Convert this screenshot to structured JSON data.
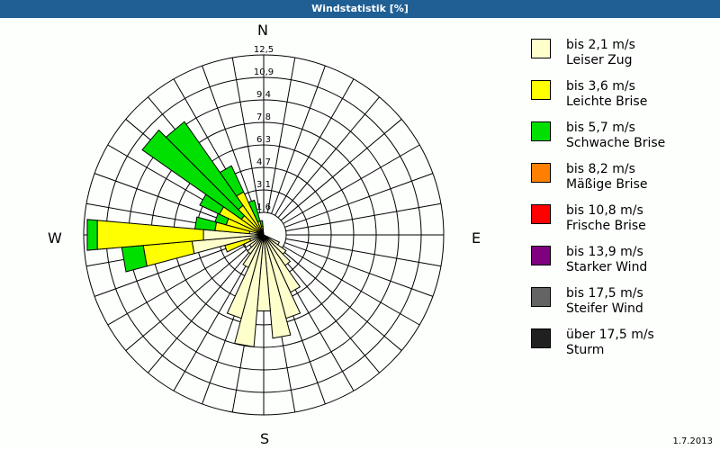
{
  "title": "Windstatistik [%]",
  "date": "1.7.2013",
  "compass": {
    "n": "N",
    "e": "E",
    "s": "S",
    "w": "W"
  },
  "legend": [
    {
      "range": "bis 2,1 m/s",
      "name": "Leiser Zug",
      "color": "#ffffcc"
    },
    {
      "range": "bis 3,6 m/s",
      "name": "Leichte Brise",
      "color": "#ffff00"
    },
    {
      "range": "bis 5,7 m/s",
      "name": "Schwache Brise",
      "color": "#00e000"
    },
    {
      "range": "bis 8,2 m/s",
      "name": "Mäßige Brise",
      "color": "#ff8000"
    },
    {
      "range": "bis 10,8 m/s",
      "name": "Frische Brise",
      "color": "#ff0000"
    },
    {
      "range": "bis 13,9 m/s",
      "name": "Starker Wind",
      "color": "#800080"
    },
    {
      "range": "bis 17,5 m/s",
      "name": "Steifer Wind",
      "color": "#646464"
    },
    {
      "range": "über 17,5 m/s",
      "name": "Sturm",
      "color": "#202020"
    }
  ],
  "chart_data": {
    "type": "polar-bar (wind rose)",
    "title": "Windstatistik [%]",
    "radial_ticks": [
      "1,6",
      "3,1",
      "4,7",
      "6,3",
      "7,8",
      "9,4",
      "10,9",
      "12,5"
    ],
    "radial_max": 12.5,
    "sector_width_deg": 10,
    "series_names": [
      "bis 2,1 m/s",
      "bis 3,6 m/s",
      "bis 5,7 m/s"
    ],
    "sectors": [
      {
        "dir": 120,
        "values": [
          1.2,
          0,
          0
        ]
      },
      {
        "dir": 130,
        "values": [
          1.9,
          0,
          0
        ]
      },
      {
        "dir": 140,
        "values": [
          2.6,
          0,
          0
        ]
      },
      {
        "dir": 150,
        "values": [
          4.4,
          0,
          0
        ]
      },
      {
        "dir": 160,
        "values": [
          6.0,
          0,
          0
        ]
      },
      {
        "dir": 170,
        "values": [
          7.2,
          0,
          0
        ]
      },
      {
        "dir": 180,
        "values": [
          5.3,
          0,
          0
        ]
      },
      {
        "dir": 190,
        "values": [
          7.8,
          0,
          0
        ]
      },
      {
        "dir": 200,
        "values": [
          6.0,
          0,
          0
        ]
      },
      {
        "dir": 210,
        "values": [
          2.5,
          0,
          0
        ]
      },
      {
        "dir": 220,
        "values": [
          1.6,
          0,
          0
        ]
      },
      {
        "dir": 230,
        "values": [
          1.2,
          0,
          0
        ]
      },
      {
        "dir": 240,
        "values": [
          1.5,
          0,
          0
        ]
      },
      {
        "dir": 250,
        "values": [
          1.0,
          1.8,
          0
        ]
      },
      {
        "dir": 260,
        "values": [
          5.0,
          3.4,
          1.5
        ]
      },
      {
        "dir": 270,
        "values": [
          4.2,
          7.4,
          0.7
        ]
      },
      {
        "dir": 280,
        "values": [
          1.0,
          2.4,
          1.4
        ]
      },
      {
        "dir": 290,
        "values": [
          0.5,
          2.2,
          0.8
        ]
      },
      {
        "dir": 300,
        "values": [
          0.5,
          2.9,
          1.5
        ]
      },
      {
        "dir": 310,
        "values": [
          0.3,
          1.6,
          8.4
        ]
      },
      {
        "dir": 320,
        "values": [
          0.3,
          2.2,
          7.1
        ]
      },
      {
        "dir": 330,
        "values": [
          0.3,
          3.0,
          2.0
        ]
      },
      {
        "dir": 340,
        "values": [
          0.2,
          0.8,
          1.5
        ]
      },
      {
        "dir": 350,
        "values": [
          0.1,
          0.5,
          0.4
        ]
      }
    ]
  }
}
